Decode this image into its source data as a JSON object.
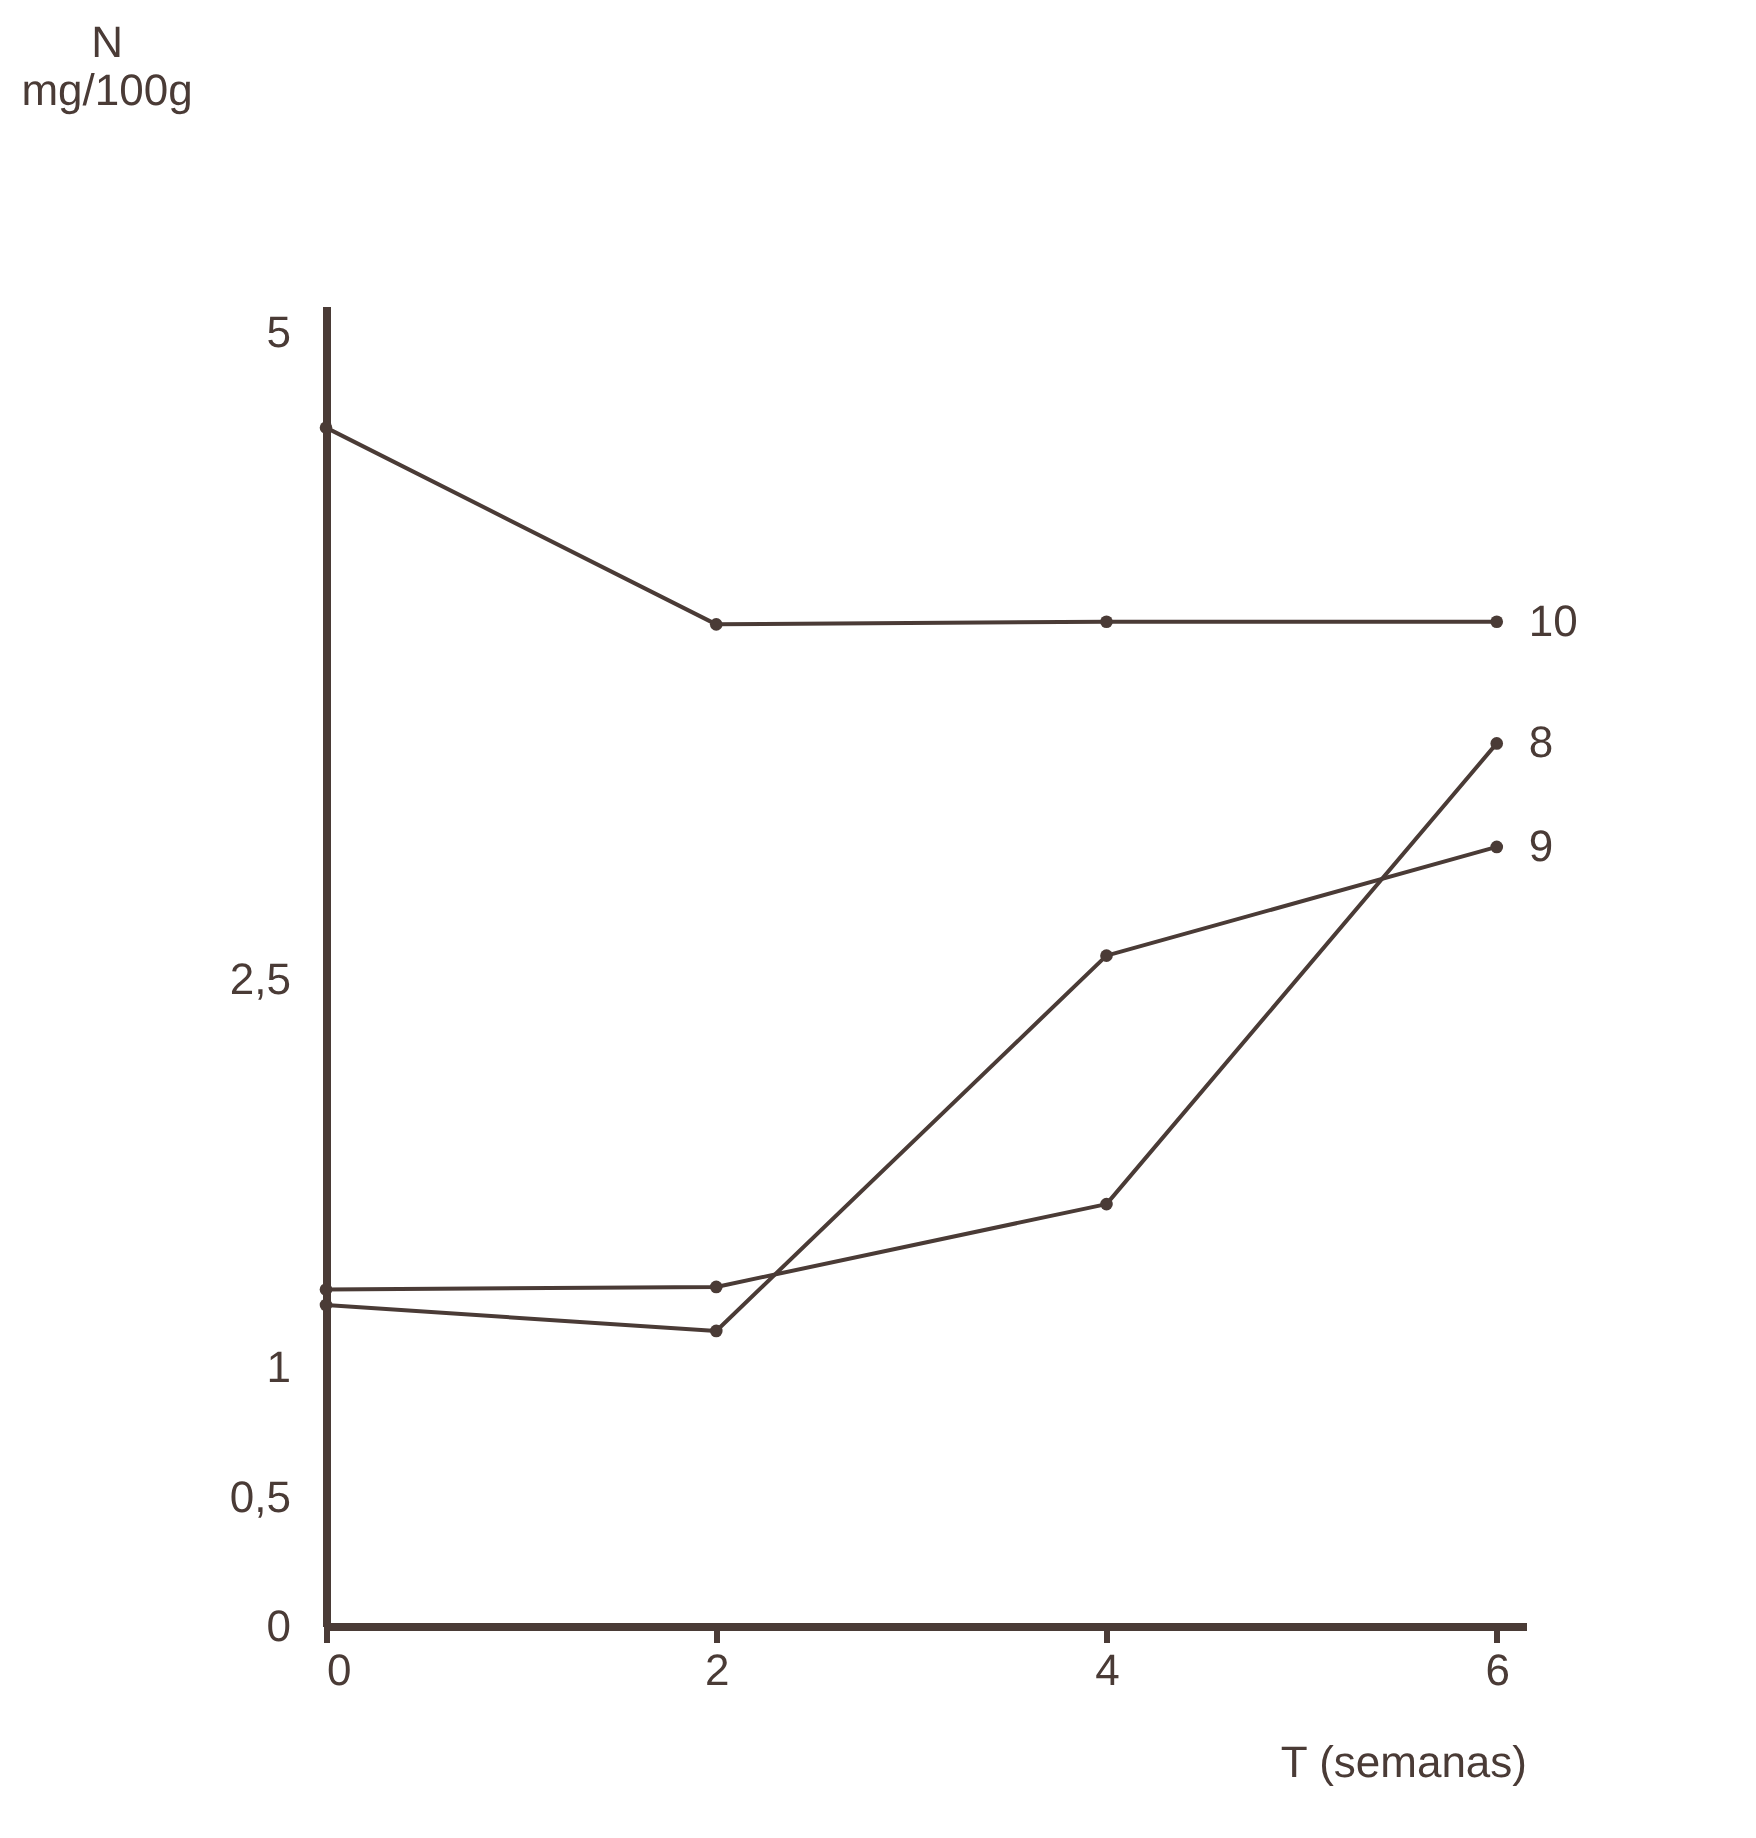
{
  "chart_data": {
    "type": "line",
    "xlabel": "T (semanas)",
    "ylabel": "N\nmg/100g",
    "x": [
      0,
      2,
      4,
      6
    ],
    "series": [
      {
        "name": "10",
        "color": "#4a3b36",
        "values": [
          4.63,
          3.87,
          3.88,
          3.88
        ]
      },
      {
        "name": "8",
        "color": "#4a3b36",
        "values": [
          1.3,
          1.31,
          1.63,
          3.41
        ]
      },
      {
        "name": "9",
        "color": "#4a3b36",
        "values": [
          1.24,
          1.14,
          2.59,
          3.01
        ]
      }
    ],
    "xlim": [
      0,
      6.15
    ],
    "xticks": [
      0,
      2,
      4,
      6
    ],
    "ylim": [
      0,
      5.1
    ],
    "yticks": [
      0,
      {
        "value": 0.5,
        "label": "0,5"
      },
      1,
      {
        "value": 2.5,
        "label": "2,5"
      },
      5
    ],
    "marker": "circle",
    "line_style": "solid",
    "grid": false
  }
}
